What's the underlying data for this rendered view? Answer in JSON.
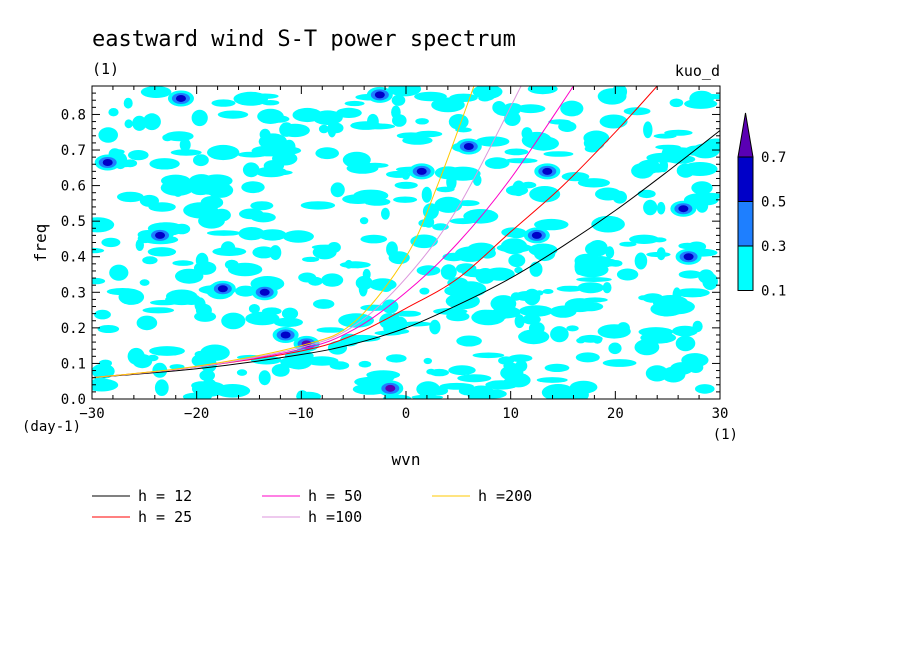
{
  "chart_data": {
    "type": "heatmap",
    "title": "eastward wind S-T power spectrum",
    "subtitle_left": "(1)",
    "subtitle_right": "kuo_d",
    "xlabel": "wvn",
    "ylabel": "freq",
    "x_unit": "(1)",
    "y_unit": "(day-1)",
    "xlim": [
      -30,
      30
    ],
    "ylim": [
      0,
      0.88
    ],
    "x_ticks": [
      -30,
      -20,
      -10,
      0,
      10,
      20,
      30
    ],
    "y_ticks": [
      0.0,
      0.1,
      0.2,
      0.3,
      0.4,
      0.5,
      0.6,
      0.7,
      0.8
    ],
    "colorbar": {
      "levels": [
        0.1,
        0.3,
        0.5,
        0.7
      ],
      "level_labels": [
        "0.1",
        "0.3",
        "0.5",
        "0.7"
      ],
      "colors": [
        "#00ffff",
        "#1e7fff",
        "#0000c8",
        "#5a00b4"
      ]
    },
    "high_power_regions": [
      {
        "x": -1.5,
        "y": 0.03,
        "level": 0.7
      },
      {
        "x": -9.5,
        "y": 0.155,
        "level": 0.7
      },
      {
        "x": -11.5,
        "y": 0.18,
        "level": 0.5
      },
      {
        "x": -13.5,
        "y": 0.3,
        "level": 0.5
      },
      {
        "x": -17.5,
        "y": 0.31,
        "level": 0.5
      },
      {
        "x": 6,
        "y": 0.71,
        "level": 0.5
      },
      {
        "x": -21.5,
        "y": 0.845,
        "level": 0.5
      },
      {
        "x": -2.5,
        "y": 0.855,
        "level": 0.5
      },
      {
        "x": -28.5,
        "y": 0.665,
        "level": 0.5
      },
      {
        "x": 1.5,
        "y": 0.64,
        "level": 0.5
      },
      {
        "x": -23.5,
        "y": 0.46,
        "level": 0.5
      },
      {
        "x": 27,
        "y": 0.4,
        "level": 0.5
      },
      {
        "x": 13.5,
        "y": 0.64,
        "level": 0.5
      },
      {
        "x": 26.5,
        "y": 0.535,
        "level": 0.5
      },
      {
        "x": 12.5,
        "y": 0.46,
        "level": 0.5
      }
    ],
    "series": [
      {
        "name": "h = 12",
        "h": 12,
        "color": "#000000",
        "x": [
          -30,
          -20,
          -10,
          -5,
          0,
          5,
          10,
          15,
          20,
          25,
          30
        ],
        "y": [
          0.06,
          0.085,
          0.125,
          0.155,
          0.2,
          0.265,
          0.34,
          0.43,
          0.53,
          0.64,
          0.755
        ]
      },
      {
        "name": "h = 25",
        "h": 25,
        "color": "#ff0000",
        "x": [
          -30,
          -20,
          -10,
          -5,
          0,
          5,
          10,
          15,
          20,
          24
        ],
        "y": [
          0.06,
          0.09,
          0.135,
          0.18,
          0.255,
          0.34,
          0.47,
          0.6,
          0.75,
          0.88
        ]
      },
      {
        "name": "h = 50",
        "h": 50,
        "color": "#ff00c8",
        "x": [
          -30,
          -20,
          -10,
          -5,
          0,
          5,
          10,
          16
        ],
        "y": [
          0.06,
          0.09,
          0.14,
          0.195,
          0.3,
          0.44,
          0.62,
          0.88
        ]
      },
      {
        "name": "h =100",
        "h": 100,
        "color": "#dc96dc",
        "x": [
          -30,
          -20,
          -10,
          -5,
          0,
          5,
          11
        ],
        "y": [
          0.06,
          0.09,
          0.145,
          0.205,
          0.34,
          0.54,
          0.88
        ]
      },
      {
        "name": "h =200",
        "h": 200,
        "color": "#ffc800",
        "x": [
          -30,
          -20,
          -10,
          -5,
          0,
          3,
          6.5
        ],
        "y": [
          0.06,
          0.092,
          0.15,
          0.215,
          0.4,
          0.6,
          0.88
        ]
      }
    ],
    "legend_placement": "bottom"
  }
}
